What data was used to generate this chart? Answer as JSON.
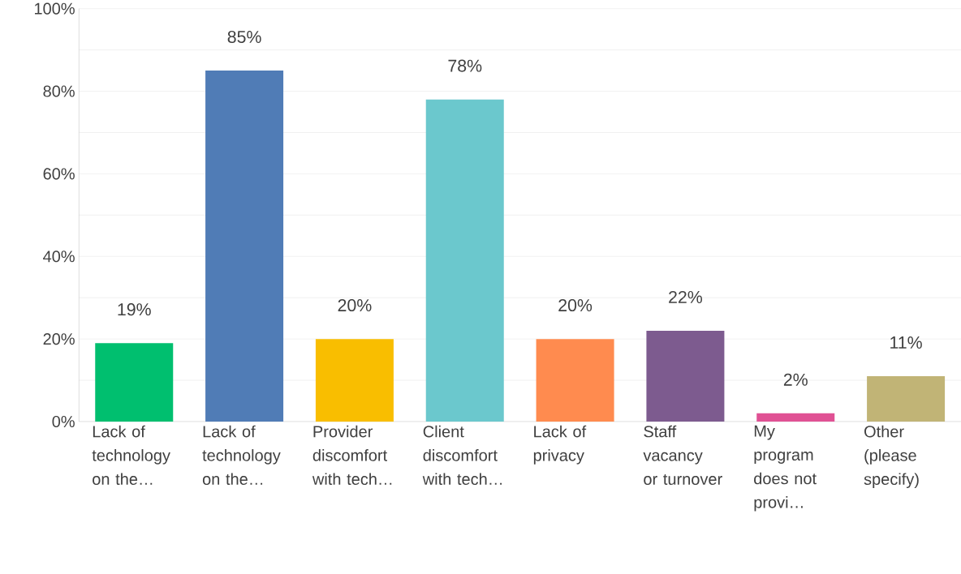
{
  "chart_data": {
    "type": "bar",
    "categories": [
      "Lack of technology on the…",
      "Lack of technology on the…",
      "Provider discomfort with tech…",
      "Client discomfort with tech…",
      "Lack of privacy",
      "Staff vacancy or turnover",
      "My program does not provi…",
      "Other (please specify)"
    ],
    "values": [
      19,
      85,
      20,
      78,
      20,
      22,
      2,
      11
    ],
    "value_labels": [
      "19%",
      "85%",
      "20%",
      "78%",
      "20%",
      "22%",
      "2%",
      "11%"
    ],
    "colors": [
      "#00bf6f",
      "#507cb6",
      "#f9be00",
      "#6bc8cd",
      "#ff8b4f",
      "#7d5b8f",
      "#e05194",
      "#c1b476"
    ],
    "ylim": [
      0,
      100
    ],
    "yticks": [
      {
        "value": 0,
        "label": "0%"
      },
      {
        "value": 10,
        "label": null
      },
      {
        "value": 20,
        "label": "20%"
      },
      {
        "value": 30,
        "label": null
      },
      {
        "value": 40,
        "label": "40%"
      },
      {
        "value": 50,
        "label": null
      },
      {
        "value": 60,
        "label": "60%"
      },
      {
        "value": 70,
        "label": null
      },
      {
        "value": 80,
        "label": "80%"
      },
      {
        "value": 90,
        "label": null
      },
      {
        "value": 100,
        "label": "100%"
      }
    ],
    "grid": true
  }
}
